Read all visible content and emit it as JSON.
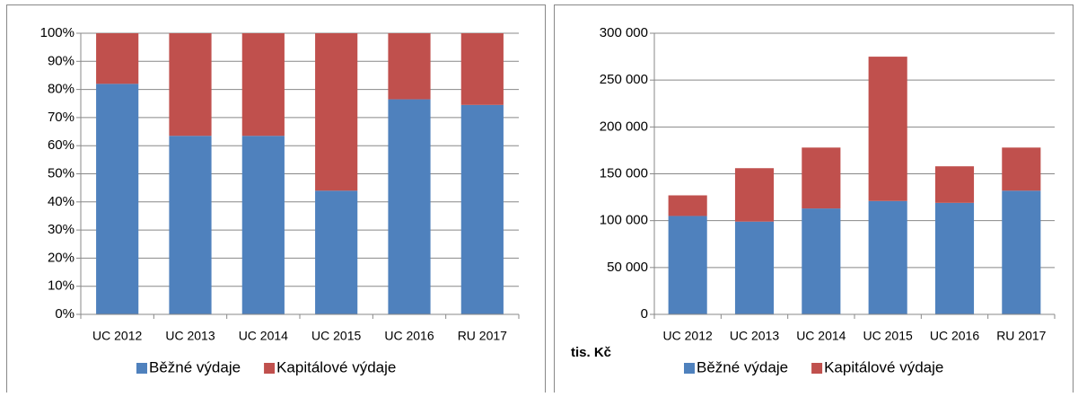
{
  "chart_data": [
    {
      "type": "bar",
      "stacked": true,
      "categories": [
        "UC 2012",
        "UC 2013",
        "UC 2014",
        "UC 2015",
        "UC 2016",
        "RU 2017"
      ],
      "series": [
        {
          "name": "Běžné výdaje",
          "color": "#4f81bd",
          "values": [
            82,
            63.5,
            63.5,
            44,
            76.5,
            74.5
          ]
        },
        {
          "name": "Kapitálové výdaje",
          "color": "#c0504d",
          "values": [
            18,
            36.5,
            36.5,
            56,
            23.5,
            25.5
          ]
        }
      ],
      "ylim": [
        0,
        100
      ],
      "yticks": [
        {
          "value": 0,
          "label": "0%"
        },
        {
          "value": 10,
          "label": "10%"
        },
        {
          "value": 20,
          "label": "20%"
        },
        {
          "value": 30,
          "label": "30%"
        },
        {
          "value": 40,
          "label": "40%"
        },
        {
          "value": 50,
          "label": "50%"
        },
        {
          "value": 60,
          "label": "60%"
        },
        {
          "value": 70,
          "label": "70%"
        },
        {
          "value": 80,
          "label": "80%"
        },
        {
          "value": 90,
          "label": "90%"
        },
        {
          "value": 100,
          "label": "100%"
        }
      ],
      "grid": true,
      "legend": "bottom"
    },
    {
      "type": "bar",
      "stacked": true,
      "ylabel": "tis. Kč",
      "categories": [
        "UC 2012",
        "UC 2013",
        "UC 2014",
        "UC 2015",
        "UC 2016",
        "RU 2017"
      ],
      "series": [
        {
          "name": "Běžné výdaje",
          "color": "#4f81bd",
          "values": [
            105000,
            99000,
            113000,
            121000,
            119000,
            132000
          ]
        },
        {
          "name": "Kapitálové výdaje",
          "color": "#c0504d",
          "values": [
            22000,
            57000,
            65000,
            154000,
            39000,
            46000
          ]
        }
      ],
      "ylim": [
        0,
        300000
      ],
      "yticks": [
        0,
        {
          "value": 50000,
          "label": "50 000"
        },
        {
          "value": 100000,
          "label": "100 000"
        },
        {
          "value": 150000,
          "label": "150 000"
        },
        {
          "value": 200000,
          "label": "200 000"
        },
        {
          "value": 250000,
          "label": "250 000"
        },
        {
          "value": 300000,
          "label": "300 000"
        }
      ],
      "grid": true,
      "legend": "bottom"
    }
  ]
}
